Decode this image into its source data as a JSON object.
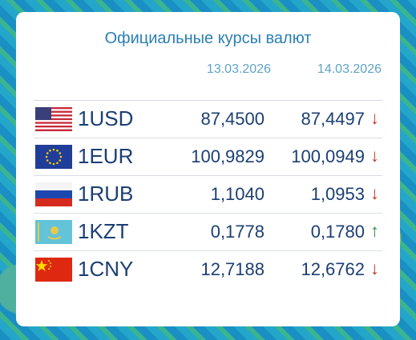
{
  "header": {
    "title": "Официальные курсы валют",
    "dates": [
      "13.03.2026",
      "14.03.2026"
    ]
  },
  "table": {
    "rows": [
      {
        "currency": "1USD",
        "rate_1": "87,4500",
        "rate_2": "87,4497",
        "trend": "↓",
        "trend_color": "#c0392b"
      },
      {
        "currency": "1EUR",
        "rate_1": "100,9829",
        "rate_2": "100,0949",
        "trend": "↓",
        "trend_color": "#c0392b"
      },
      {
        "currency": "1RUB",
        "rate_1": "1,1040",
        "rate_2": "1,0953",
        "trend": "↓",
        "trend_color": "#c0392b"
      },
      {
        "currency": "1KZT",
        "rate_1": "0,1778",
        "rate_2": "0,1780",
        "trend": "↑",
        "trend_color": "#2e8b3a"
      },
      {
        "currency": "1CNY",
        "rate_1": "12,7188",
        "rate_2": "12,6762",
        "trend": "↓",
        "trend_color": "#c0392b"
      }
    ]
  }
}
